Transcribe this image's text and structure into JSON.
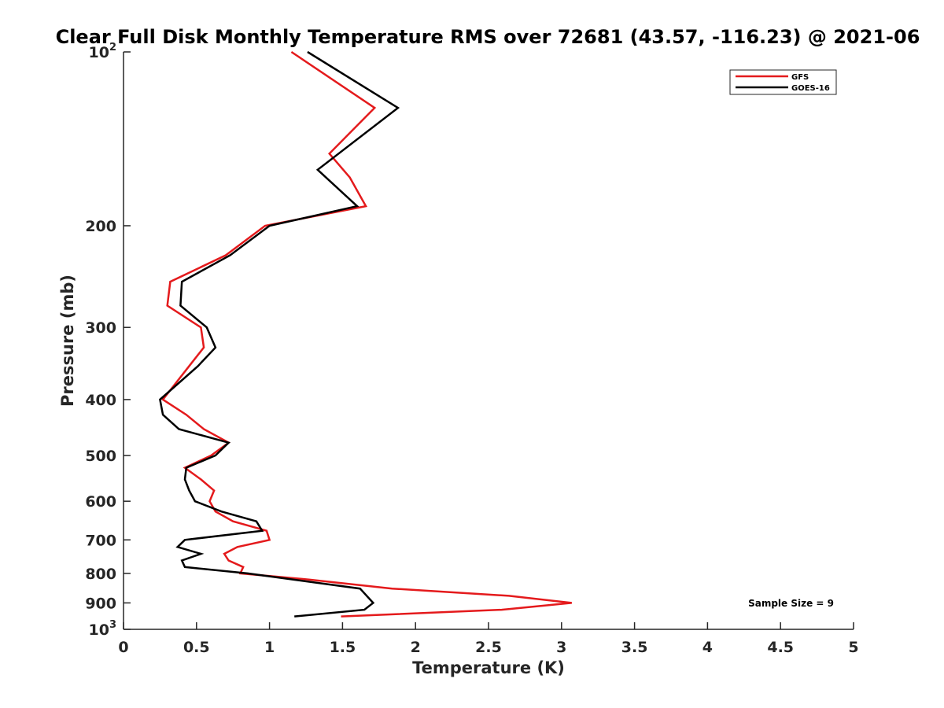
{
  "chart_data": {
    "type": "line",
    "title": "Clear Full Disk Monthly Temperature RMS over 72681 (43.57, -116.23) @ 2021-06",
    "xlabel": "Temperature (K)",
    "ylabel": "Pressure (mb)",
    "xlim": [
      0,
      5
    ],
    "ylim": [
      100,
      1000
    ],
    "y_scale": "log",
    "y_reversed": true,
    "x_ticks": [
      "0",
      "0.5",
      "1",
      "1.5",
      "2",
      "2.5",
      "3",
      "3.5",
      "4",
      "4.5",
      "5"
    ],
    "y_ticks": [
      {
        "value": 100,
        "base": "10",
        "exp": "2"
      },
      {
        "value": 200,
        "label": "200"
      },
      {
        "value": 300,
        "label": "300"
      },
      {
        "value": 400,
        "label": "400"
      },
      {
        "value": 500,
        "label": "500"
      },
      {
        "value": 600,
        "label": "600"
      },
      {
        "value": 700,
        "label": "700"
      },
      {
        "value": 800,
        "label": "800"
      },
      {
        "value": 900,
        "label": "900"
      },
      {
        "value": 1000,
        "base": "10",
        "exp": "3"
      }
    ],
    "grid": false,
    "legend_position": "top-right",
    "series": [
      {
        "name": "GFS",
        "color": "#e41a1c",
        "points": [
          [
            1.15,
            100
          ],
          [
            1.72,
            125
          ],
          [
            1.41,
            150
          ],
          [
            1.55,
            165
          ],
          [
            1.66,
            185
          ],
          [
            0.97,
            200
          ],
          [
            0.7,
            225
          ],
          [
            0.32,
            250
          ],
          [
            0.3,
            275
          ],
          [
            0.53,
            300
          ],
          [
            0.55,
            325
          ],
          [
            0.45,
            350
          ],
          [
            0.27,
            400
          ],
          [
            0.43,
            425
          ],
          [
            0.55,
            450
          ],
          [
            0.72,
            475
          ],
          [
            0.6,
            500
          ],
          [
            0.42,
            525
          ],
          [
            0.53,
            550
          ],
          [
            0.62,
            575
          ],
          [
            0.59,
            600
          ],
          [
            0.63,
            625
          ],
          [
            0.75,
            650
          ],
          [
            0.98,
            675
          ],
          [
            1.0,
            700
          ],
          [
            0.78,
            720
          ],
          [
            0.69,
            740
          ],
          [
            0.72,
            760
          ],
          [
            0.82,
            780
          ],
          [
            0.8,
            800
          ],
          [
            1.27,
            820
          ],
          [
            1.84,
            850
          ],
          [
            2.64,
            875
          ],
          [
            3.07,
            900
          ],
          [
            2.59,
            925
          ],
          [
            1.49,
            950
          ]
        ]
      },
      {
        "name": "GOES-16",
        "color": "#000000",
        "points": [
          [
            1.26,
            100
          ],
          [
            1.88,
            125
          ],
          [
            1.33,
            160
          ],
          [
            1.6,
            185
          ],
          [
            1.0,
            200
          ],
          [
            0.73,
            225
          ],
          [
            0.4,
            250
          ],
          [
            0.39,
            275
          ],
          [
            0.57,
            300
          ],
          [
            0.63,
            325
          ],
          [
            0.51,
            350
          ],
          [
            0.25,
            400
          ],
          [
            0.27,
            425
          ],
          [
            0.38,
            450
          ],
          [
            0.72,
            475
          ],
          [
            0.63,
            500
          ],
          [
            0.43,
            525
          ],
          [
            0.42,
            550
          ],
          [
            0.45,
            575
          ],
          [
            0.49,
            600
          ],
          [
            0.67,
            625
          ],
          [
            0.91,
            650
          ],
          [
            0.95,
            675
          ],
          [
            0.42,
            700
          ],
          [
            0.37,
            720
          ],
          [
            0.53,
            740
          ],
          [
            0.4,
            760
          ],
          [
            0.42,
            780
          ],
          [
            0.85,
            800
          ],
          [
            1.62,
            850
          ],
          [
            1.71,
            900
          ],
          [
            1.65,
            925
          ],
          [
            1.17,
            950
          ]
        ]
      }
    ],
    "annotations": [
      {
        "text": "Sample Size = 9",
        "position": "bottom-right"
      }
    ]
  }
}
